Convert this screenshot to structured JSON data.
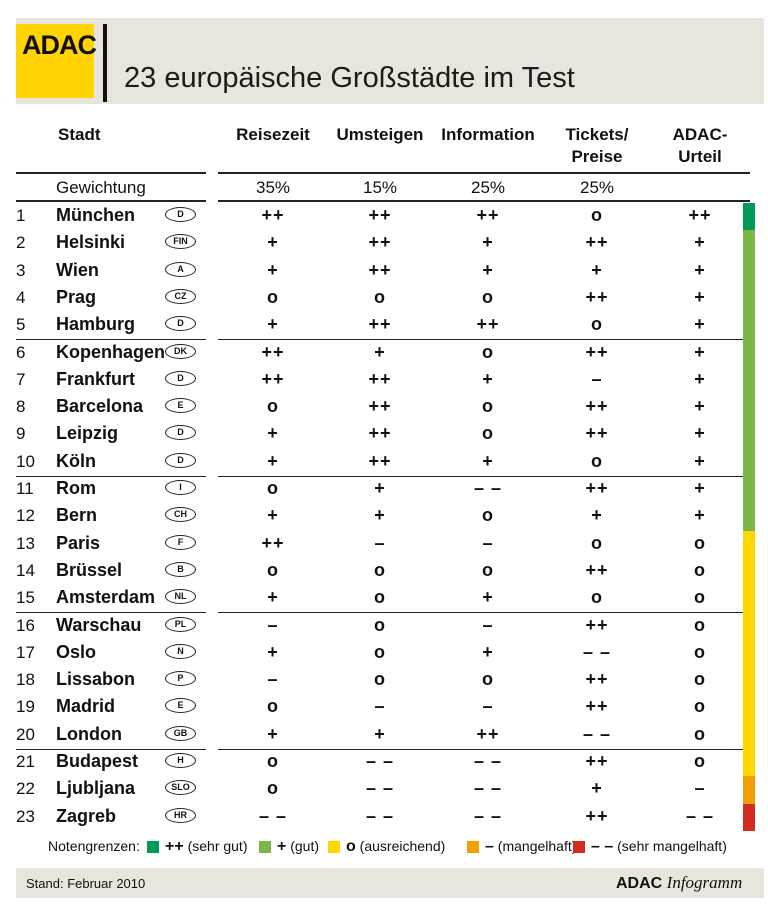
{
  "logo_text": "ADAC",
  "title": "23 europäische Großstädte im Test",
  "columns": {
    "stadt": "Stadt",
    "reisezeit": "Reisezeit",
    "umsteigen": "Umsteigen",
    "information": "Information",
    "tickets_1": "Tickets/",
    "tickets_2": "Preise",
    "urteil_1": "ADAC-",
    "urteil_2": "Urteil"
  },
  "weights": {
    "label": "Gewichtung",
    "reisezeit": "35%",
    "umsteigen": "15%",
    "information": "25%",
    "tickets": "25%"
  },
  "rows": [
    {
      "rank": "1",
      "city": "München",
      "code": "D",
      "r": "++",
      "u": "++",
      "i": "++",
      "t": "o",
      "a": "++"
    },
    {
      "rank": "2",
      "city": "Helsinki",
      "code": "FIN",
      "r": "+",
      "u": "++",
      "i": "+",
      "t": "++",
      "a": "+"
    },
    {
      "rank": "3",
      "city": "Wien",
      "code": "A",
      "r": "+",
      "u": "++",
      "i": "+",
      "t": "+",
      "a": "+"
    },
    {
      "rank": "4",
      "city": "Prag",
      "code": "CZ",
      "r": "o",
      "u": "o",
      "i": "o",
      "t": "++",
      "a": "+"
    },
    {
      "rank": "5",
      "city": "Hamburg",
      "code": "D",
      "r": "+",
      "u": "++",
      "i": "++",
      "t": "o",
      "a": "+"
    },
    {
      "rank": "6",
      "city": "Kopenhagen",
      "code": "DK",
      "r": "++",
      "u": "+",
      "i": "o",
      "t": "++",
      "a": "+"
    },
    {
      "rank": "7",
      "city": "Frankfurt",
      "code": "D",
      "r": "++",
      "u": "++",
      "i": "+",
      "t": "–",
      "a": "+"
    },
    {
      "rank": "8",
      "city": "Barcelona",
      "code": "E",
      "r": "o",
      "u": "++",
      "i": "o",
      "t": "++",
      "a": "+"
    },
    {
      "rank": "9",
      "city": "Leipzig",
      "code": "D",
      "r": "+",
      "u": "++",
      "i": "o",
      "t": "++",
      "a": "+"
    },
    {
      "rank": "10",
      "city": "Köln",
      "code": "D",
      "r": "+",
      "u": "++",
      "i": "+",
      "t": "o",
      "a": "+"
    },
    {
      "rank": "11",
      "city": "Rom",
      "code": "I",
      "r": "o",
      "u": "+",
      "i": "– –",
      "t": "++",
      "a": "+"
    },
    {
      "rank": "12",
      "city": "Bern",
      "code": "CH",
      "r": "+",
      "u": "+",
      "i": "o",
      "t": "+",
      "a": "+"
    },
    {
      "rank": "13",
      "city": "Paris",
      "code": "F",
      "r": "++",
      "u": "–",
      "i": "–",
      "t": "o",
      "a": "o"
    },
    {
      "rank": "14",
      "city": "Brüssel",
      "code": "B",
      "r": "o",
      "u": "o",
      "i": "o",
      "t": "++",
      "a": "o"
    },
    {
      "rank": "15",
      "city": "Amsterdam",
      "code": "NL",
      "r": "+",
      "u": "o",
      "i": "+",
      "t": "o",
      "a": "o"
    },
    {
      "rank": "16",
      "city": "Warschau",
      "code": "PL",
      "r": "–",
      "u": "o",
      "i": "–",
      "t": "++",
      "a": "o"
    },
    {
      "rank": "17",
      "city": "Oslo",
      "code": "N",
      "r": "+",
      "u": "o",
      "i": "+",
      "t": "– –",
      "a": "o"
    },
    {
      "rank": "18",
      "city": "Lissabon",
      "code": "P",
      "r": "–",
      "u": "o",
      "i": "o",
      "t": "++",
      "a": "o"
    },
    {
      "rank": "19",
      "city": "Madrid",
      "code": "E",
      "r": "o",
      "u": "–",
      "i": "–",
      "t": "++",
      "a": "o"
    },
    {
      "rank": "20",
      "city": "London",
      "code": "GB",
      "r": "+",
      "u": "+",
      "i": "++",
      "t": "– –",
      "a": "o"
    },
    {
      "rank": "21",
      "city": "Budapest",
      "code": "H",
      "r": "o",
      "u": "– –",
      "i": "– –",
      "t": "++",
      "a": "o"
    },
    {
      "rank": "22",
      "city": "Ljubljana",
      "code": "SLO",
      "r": "o",
      "u": "– –",
      "i": "– –",
      "t": "+",
      "a": "–"
    },
    {
      "rank": "23",
      "city": "Zagreb",
      "code": "HR",
      "r": "– –",
      "u": "– –",
      "i": "– –",
      "t": "++",
      "a": "– –"
    }
  ],
  "rating_colors": {
    "sehr_gut": "#009a5a",
    "gut": "#7ab648",
    "ausreichend": "#fcd800",
    "mangelhaft": "#f0a000",
    "sehr_mangelhaft": "#d42a20"
  },
  "status_bar_segments": [
    {
      "rating": "sehr_gut",
      "rows": 1
    },
    {
      "rating": "gut",
      "rows": 11
    },
    {
      "rating": "ausreichend",
      "rows": 9
    },
    {
      "rating": "mangelhaft",
      "rows": 1
    },
    {
      "rating": "sehr_mangelhaft",
      "rows": 1
    }
  ],
  "legend": {
    "label": "Notengrenzen:",
    "items": [
      {
        "symbol": "++",
        "text": "(sehr gut)",
        "color": "#009a5a"
      },
      {
        "symbol": "+",
        "text": "(gut)",
        "color": "#7ab648"
      },
      {
        "symbol": "o",
        "text": "(ausreichend)",
        "color": "#fcd800"
      },
      {
        "symbol": "–",
        "text": "(mangelhaft)",
        "color": "#f0a000"
      },
      {
        "symbol": "– –",
        "text": "(sehr mangelhaft)",
        "color": "#d42a20"
      }
    ]
  },
  "footer": {
    "stand": "Stand: Februar 2010",
    "brand_bold": "ADAC",
    "brand_italic": "Infogramm"
  }
}
